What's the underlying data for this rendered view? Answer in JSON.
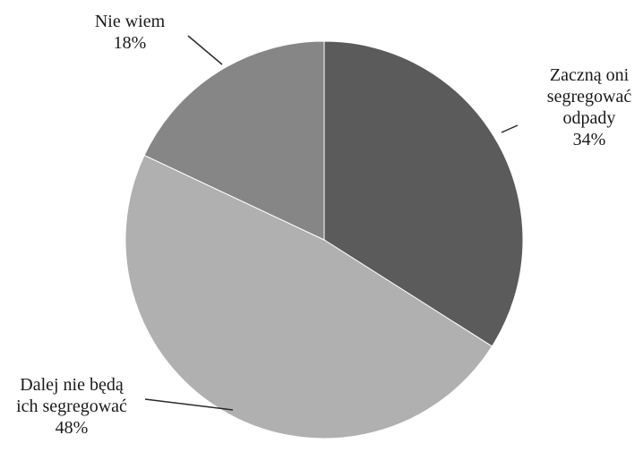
{
  "chart_data": {
    "type": "pie",
    "slices": [
      {
        "label_lines": [
          "Zaczną oni",
          "segregować",
          "odpady"
        ],
        "value": 34,
        "value_label": "34%",
        "color": "#5b5b5b"
      },
      {
        "label_lines": [
          "Dalej nie będą",
          "ich segregować"
        ],
        "value": 48,
        "value_label": "48%",
        "color": "#b0b0b0"
      },
      {
        "label_lines": [
          "Nie wiem"
        ],
        "value": 18,
        "value_label": "18%",
        "color": "#868686"
      }
    ],
    "start": "top",
    "direction": "clockwise",
    "labels": "outside-with-leader-lines",
    "legend": "none"
  }
}
